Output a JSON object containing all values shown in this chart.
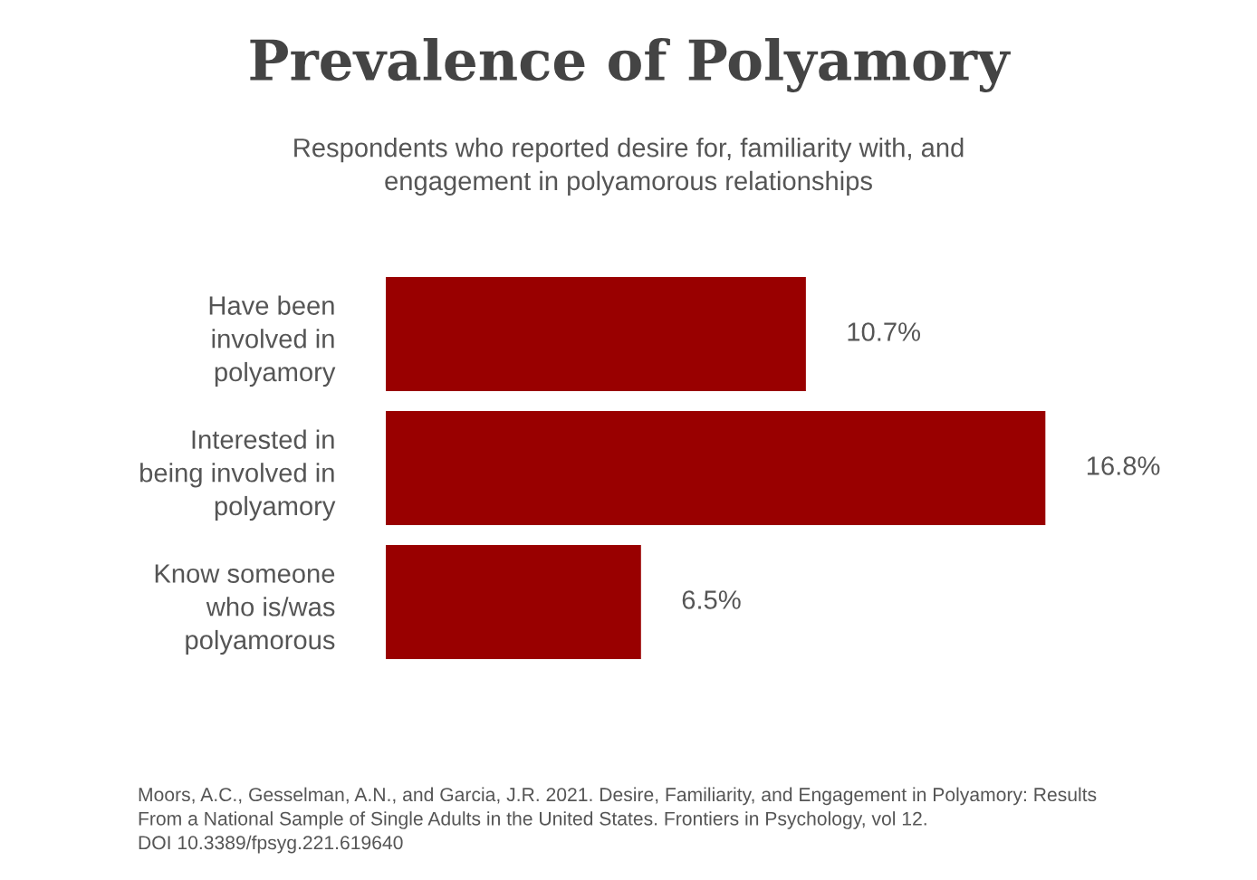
{
  "chart_data": {
    "type": "bar",
    "orientation": "horizontal",
    "title": "Prevalence of Polyamory",
    "subtitle": "Respondents who reported desire for, familiarity with, and\nengagement in polyamorous relationships",
    "categories": [
      "Have been\ninvolved in\npolyamory",
      "Interested in\nbeing involved in\npolyamory",
      "Know someone\nwho is/was\npolyamorous"
    ],
    "values": [
      10.7,
      16.8,
      6.5
    ],
    "color": "#990000",
    "value_labels": [
      "10.7%",
      "16.8%",
      "6.5%"
    ],
    "annotations": [
      "Moors, A.C., Gesselman, A.N., and Garcia, J.R. 2021. Desire, Familiarity, and Engagement in Polyamory: Results\nFrom a National Sample of Single Adults in the United States. Frontiers in Psychology, vol 12.\nDOI 10.3389/fpsyg.221.619640"
    ],
    "grid": false,
    "legend": false
  }
}
